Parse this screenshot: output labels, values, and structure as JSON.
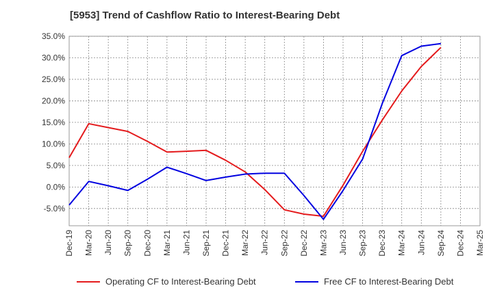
{
  "chart_data": {
    "type": "line",
    "title": "[5953]  Trend of Cashflow Ratio to Interest-Bearing Debt",
    "categories": [
      "Dec-19",
      "Mar-20",
      "Jun-20",
      "Sep-20",
      "Dec-20",
      "Mar-21",
      "Jun-21",
      "Sep-21",
      "Dec-21",
      "Mar-22",
      "Jun-22",
      "Sep-22",
      "Dec-22",
      "Mar-23",
      "Jun-23",
      "Sep-23",
      "Dec-23",
      "Mar-24",
      "Jun-24",
      "Sep-24",
      "Dec-24",
      "Mar-25"
    ],
    "ylim": [
      -9,
      35
    ],
    "yticks": [
      35,
      30,
      25,
      20,
      15,
      10,
      5,
      0,
      -5
    ],
    "ytick_labels": [
      "35.0%",
      "30.0%",
      "25.0%",
      "20.0%",
      "15.0%",
      "10.0%",
      "5.0%",
      "0.0%",
      "-5.0%"
    ],
    "grid": true,
    "legend_position": "bottom",
    "series": [
      {
        "name": "Operating CF to Interest-Bearing Debt",
        "color": "#e41a1c",
        "values": [
          6.8,
          14.7,
          13.8,
          12.9,
          10.6,
          8.1,
          8.3,
          8.5,
          6.2,
          3.5,
          -0.6,
          -5.3,
          -6.3,
          -6.8,
          0.4,
          8.3,
          15.5,
          22.3,
          28.0,
          32.4,
          null,
          null
        ]
      },
      {
        "name": "Free CF to Interest-Bearing Debt",
        "color": "#0000e0",
        "values": [
          -4.2,
          1.3,
          0.3,
          -0.8,
          1.8,
          4.6,
          3.1,
          1.5,
          2.3,
          3.0,
          3.2,
          3.2,
          -2.0,
          -7.5,
          -0.8,
          6.5,
          19.3,
          30.5,
          32.7,
          33.3,
          null,
          null
        ]
      }
    ]
  }
}
